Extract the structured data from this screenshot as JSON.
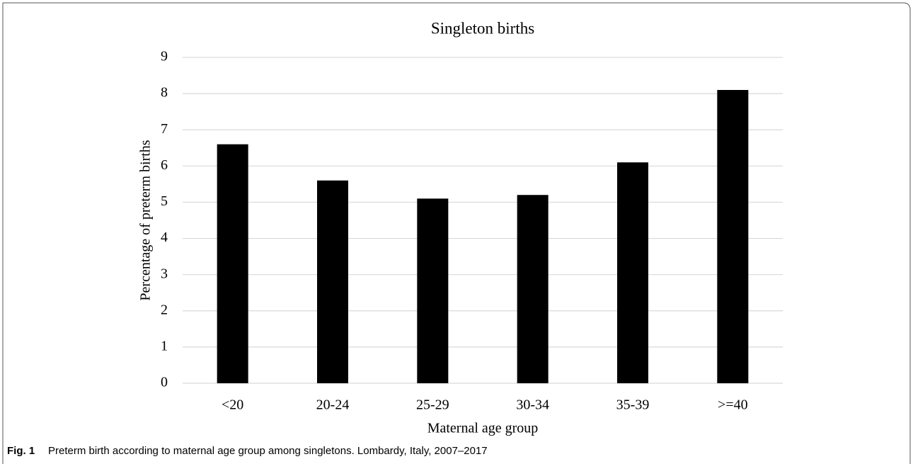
{
  "chart_data": {
    "type": "bar",
    "title": "Singleton births",
    "x_label": "Maternal age group",
    "y_label": "Percentage of preterm births",
    "categories": [
      "<20",
      "20-24",
      "25-29",
      "30-34",
      "35-39",
      ">=40"
    ],
    "values": [
      6.6,
      5.6,
      5.1,
      5.2,
      6.1,
      8.1
    ],
    "color": "#000000",
    "ylim": [
      0,
      9
    ],
    "yticks": [
      0,
      1,
      2,
      3,
      4,
      5,
      6,
      7,
      8,
      9
    ],
    "grid": true
  },
  "caption": {
    "label": "Fig. 1",
    "text": "Preterm birth according to maternal age group among singletons. Lombardy, Italy, 2007–2017"
  }
}
